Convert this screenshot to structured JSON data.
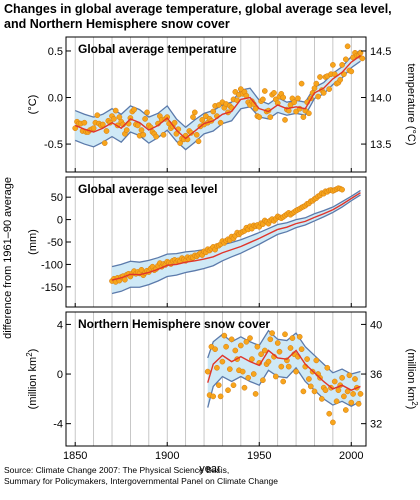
{
  "figure": {
    "title_line1": "Changes in global average temperature, global average sea level,",
    "title_line2": "and Northern Hemisphere snow cover",
    "shared_ylabel": "difference from 1961–90 average",
    "xlabel": "year",
    "x_ticks": [
      1850,
      1900,
      1950,
      2000
    ],
    "footer_line1": "Source: Climate Change 2007: The Physical Science Basis,",
    "footer_line2": "Summary for Policymakers, Intergovernmental Panel on Climate Change"
  },
  "colors": {
    "band_fill": "#cfe9f6",
    "band_edge": "#5b7aab",
    "smooth_line": "#e0352b",
    "point_fill": "#f7a51c",
    "point_edge": "#d37c12",
    "grid": "#b9b9b9"
  },
  "chart_data": [
    {
      "type": "line",
      "title": "Global average temperature",
      "ylabel_left": "(°C)",
      "ylabel_right": "temperature (°C)",
      "xlim": [
        1845,
        2008
      ],
      "ylim": [
        -0.8,
        0.65
      ],
      "y_ticks_left": [
        "0.5",
        "0.0",
        "-0.5"
      ],
      "y_ticks_right": [
        "14.5",
        "14.0",
        "13.5"
      ],
      "x": [
        1850,
        1855,
        1860,
        1865,
        1870,
        1875,
        1880,
        1885,
        1890,
        1895,
        1900,
        1905,
        1910,
        1915,
        1920,
        1925,
        1930,
        1935,
        1940,
        1945,
        1950,
        1955,
        1960,
        1965,
        1970,
        1975,
        1980,
        1985,
        1990,
        1995,
        2000,
        2005
      ],
      "smoothed": [
        -0.3,
        -0.34,
        -0.37,
        -0.33,
        -0.27,
        -0.33,
        -0.23,
        -0.27,
        -0.35,
        -0.3,
        -0.22,
        -0.35,
        -0.44,
        -0.36,
        -0.28,
        -0.25,
        -0.18,
        -0.15,
        -0.02,
        0.0,
        -0.12,
        -0.15,
        -0.08,
        -0.12,
        -0.1,
        -0.12,
        0.05,
        0.1,
        0.2,
        0.27,
        0.38,
        0.45
      ],
      "band_halfwidth": [
        0.16,
        0.16,
        0.16,
        0.15,
        0.15,
        0.15,
        0.14,
        0.14,
        0.14,
        0.13,
        0.13,
        0.12,
        0.12,
        0.12,
        0.11,
        0.11,
        0.1,
        0.1,
        0.1,
        0.1,
        0.09,
        0.08,
        0.08,
        0.07,
        0.07,
        0.07,
        0.06,
        0.06,
        0.06,
        0.06,
        0.06,
        0.06
      ],
      "points_year_start": 1850,
      "points": [
        -0.33,
        -0.26,
        -0.28,
        -0.28,
        -0.36,
        -0.27,
        -0.37,
        -0.37,
        -0.35,
        -0.34,
        -0.33,
        -0.27,
        -0.19,
        -0.28,
        -0.3,
        -0.29,
        -0.49,
        -0.36,
        -0.25,
        -0.27,
        -0.2,
        -0.23,
        -0.14,
        -0.3,
        -0.21,
        -0.26,
        -0.29,
        -0.39,
        -0.35,
        -0.28,
        -0.22,
        -0.15,
        -0.13,
        -0.29,
        -0.3,
        -0.41,
        -0.35,
        -0.4,
        -0.23,
        -0.16,
        -0.3,
        -0.32,
        -0.37,
        -0.39,
        -0.42,
        -0.28,
        -0.2,
        -0.24,
        -0.4,
        -0.23,
        -0.21,
        -0.28,
        -0.33,
        -0.31,
        -0.27,
        -0.39,
        -0.34,
        -0.49,
        -0.44,
        -0.45,
        -0.41,
        -0.45,
        -0.36,
        -0.38,
        -0.21,
        -0.16,
        -0.4,
        -0.47,
        -0.31,
        -0.24,
        -0.29,
        -0.2,
        -0.27,
        -0.23,
        -0.25,
        -0.15,
        -0.09,
        -0.2,
        -0.08,
        -0.27,
        -0.05,
        -0.11,
        -0.07,
        -0.16,
        -0.09,
        -0.11,
        -0.02,
        0.06,
        -0.03,
        0.03,
        0.09,
        0.04,
        0.06,
        0.02,
        -0.05,
        -0.08,
        -0.04,
        -0.07,
        -0.12,
        -0.2,
        -0.21,
        -0.04,
        -0.02,
        0.07,
        -0.15,
        -0.14,
        -0.21,
        0.03,
        0.05,
        -0.02,
        -0.06,
        0.01,
        0.04,
        0.0,
        -0.24,
        -0.13,
        -0.14,
        -0.08,
        -0.01,
        -0.05,
        -0.15,
        -0.01,
        -0.12,
        0.15,
        -0.21,
        -0.14,
        -0.05,
        -0.17,
        -0.01,
        0.05,
        0.1,
        0.15,
        0.01,
        0.22,
        0.08,
        0.05,
        0.22,
        0.23,
        0.09,
        0.25,
        0.35,
        0.25,
        0.15,
        0.16,
        0.19,
        0.35,
        0.25,
        0.41,
        0.55,
        0.29,
        0.28,
        0.43,
        0.48,
        0.45,
        0.45,
        0.48,
        0.42
      ]
    },
    {
      "type": "line",
      "title": "Global average sea level",
      "ylabel_left": "(mm)",
      "xlim": [
        1845,
        2008
      ],
      "ylim": [
        -195,
        95
      ],
      "y_ticks_left": [
        "50",
        "0",
        "-50",
        "-100",
        "-150"
      ],
      "x": [
        1870,
        1875,
        1880,
        1885,
        1890,
        1895,
        1900,
        1905,
        1910,
        1915,
        1920,
        1925,
        1930,
        1935,
        1940,
        1945,
        1950,
        1955,
        1960,
        1965,
        1970,
        1975,
        1980,
        1985,
        1990,
        1995,
        2000,
        2005
      ],
      "smoothed": [
        -135,
        -130,
        -122,
        -123,
        -118,
        -111,
        -102,
        -100,
        -95,
        -92,
        -88,
        -83,
        -74,
        -67,
        -60,
        -51,
        -42,
        -32,
        -22,
        -17,
        -9,
        -4,
        5,
        13,
        22,
        34,
        47,
        60
      ],
      "band_halfwidth": [
        30,
        30,
        29,
        28,
        27,
        26,
        25,
        24,
        23,
        22,
        21,
        20,
        18,
        16,
        15,
        14,
        13,
        12,
        11,
        10,
        9,
        8,
        8,
        7,
        6,
        6,
        5,
        5
      ],
      "points_year_start": 1870,
      "points": [
        -137,
        -132,
        -139,
        -130,
        -136,
        -128,
        -126,
        -134,
        -123,
        -121,
        -127,
        -120,
        -115,
        -121,
        -117,
        -120,
        -112,
        -124,
        -119,
        -114,
        -117,
        -109,
        -105,
        -113,
        -110,
        -103,
        -97,
        -105,
        -99,
        -101,
        -94,
        -96,
        -99,
        -92,
        -90,
        -95,
        -91,
        -93,
        -86,
        -89,
        -92,
        -84,
        -88,
        -84,
        -85,
        -80,
        -82,
        -78,
        -75,
        -79,
        -71,
        -73,
        -66,
        -69,
        -65,
        -61,
        -67,
        -59,
        -58,
        -55,
        -48,
        -52,
        -47,
        -44,
        -46,
        -38,
        -42,
        -36,
        -29,
        -33,
        -29,
        -27,
        -25,
        -18,
        -22,
        -15,
        -20,
        -13,
        -15,
        -12,
        -16,
        -8,
        -10,
        -2,
        -5,
        -9,
        -2,
        1,
        -3,
        2,
        7,
        5,
        3,
        6,
        9,
        12,
        15,
        11,
        14,
        17,
        20,
        22,
        24,
        27,
        29,
        31,
        35,
        36,
        41,
        42,
        46,
        48,
        52,
        54,
        59,
        58,
        63,
        62,
        65,
        66,
        64,
        66,
        68,
        70,
        69,
        67
      ]
    },
    {
      "type": "line",
      "title": "Northern Hemisphere snow cover",
      "ylabel_left": "(million km",
      "ylabel_left_sup": "2",
      "ylabel_right": "(million km",
      "ylabel_right_sup": "2",
      "ylabel_close": ")",
      "xlim": [
        1845,
        2008
      ],
      "ylim": [
        -5.8,
        5.0
      ],
      "y_ticks_left": [
        "4",
        "0",
        "-4"
      ],
      "y_ticks_right": [
        "40",
        "36",
        "32"
      ],
      "x": [
        1922,
        1925,
        1930,
        1935,
        1940,
        1945,
        1950,
        1955,
        1960,
        1965,
        1970,
        1975,
        1980,
        1985,
        1990,
        1995,
        2000,
        2005
      ],
      "smoothed": [
        -0.7,
        0.8,
        1.5,
        1.0,
        1.4,
        1.0,
        0.7,
        1.9,
        1.3,
        1.2,
        1.9,
        0.8,
        0.1,
        -0.6,
        -1.2,
        -0.9,
        -1.3,
        -1.0
      ],
      "band_halfwidth": [
        2.0,
        1.8,
        1.7,
        1.6,
        1.6,
        1.6,
        1.6,
        1.6,
        1.5,
        1.5,
        1.4,
        1.4,
        1.4,
        1.4,
        1.3,
        1.3,
        1.3,
        1.2
      ],
      "points_year_start": 1922,
      "points": [
        0.2,
        -1.7,
        2.2,
        -1.8,
        2.0,
        0.5,
        -0.9,
        -1.8,
        1.0,
        3.1,
        2.2,
        -1.3,
        0.4,
        2.8,
        -0.9,
        1.9,
        1.2,
        0.3,
        2.3,
        0.2,
        -1.1,
        2.6,
        -0.3,
        2.9,
        1.2,
        0.0,
        -1.6,
        2.2,
        0.9,
        1.6,
        -0.5,
        1.9,
        0.8,
        1.0,
        2.8,
        3.3,
        1.4,
        -0.2,
        2.5,
        1.8,
        0.6,
        -0.6,
        3.2,
        1.1,
        0.6,
        2.1,
        2.9,
        1.6,
        0.2,
        1.4,
        3.0,
        2.0,
        -1.4,
        0.6,
        1.2,
        -0.4,
        -1.0,
        0.2,
        -1.4,
        1.1,
        0.0,
        -0.3,
        -2.0,
        -1.1,
        -1.3,
        0.5,
        -3.2,
        -1.1,
        -3.9,
        -0.6,
        -2.2,
        -1.3,
        -0.9,
        -0.3,
        -1.8,
        -2.9,
        -1.4,
        -0.1,
        -2.3,
        -1.6,
        -0.4,
        -1.1,
        -2.4,
        -1.6
      ]
    }
  ]
}
